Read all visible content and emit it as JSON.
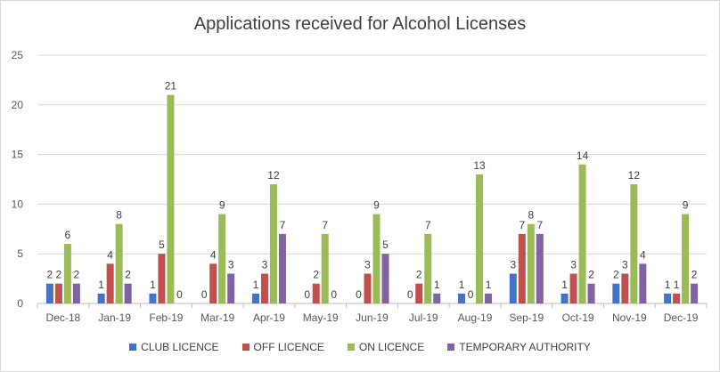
{
  "chart_data": {
    "type": "bar",
    "title": "Applications received for Alcohol Licenses",
    "xlabel": "",
    "ylabel": "",
    "ylim": [
      0,
      25
    ],
    "yticks": [
      0,
      5,
      10,
      15,
      20,
      25
    ],
    "grid": true,
    "legend_position": "bottom",
    "categories": [
      "Dec-18",
      "Jan-19",
      "Feb-19",
      "Mar-19",
      "Apr-19",
      "May-19",
      "Jun-19",
      "Jul-19",
      "Aug-19",
      "Sep-19",
      "Oct-19",
      "Nov-19",
      "Dec-19"
    ],
    "series": [
      {
        "name": "CLUB LICENCE",
        "color": "#4472c4",
        "values": [
          2,
          1,
          1,
          0,
          1,
          0,
          0,
          0,
          1,
          3,
          1,
          2,
          1
        ]
      },
      {
        "name": "OFF LICENCE",
        "color": "#c0504d",
        "values": [
          2,
          4,
          5,
          4,
          3,
          2,
          3,
          2,
          0,
          7,
          3,
          3,
          1
        ]
      },
      {
        "name": "ON LICENCE",
        "color": "#9bbb59",
        "values": [
          6,
          8,
          21,
          9,
          12,
          7,
          9,
          7,
          13,
          8,
          14,
          12,
          9
        ]
      },
      {
        "name": "TEMPORARY AUTHORITY",
        "color": "#8064a2",
        "values": [
          2,
          2,
          0,
          3,
          7,
          0,
          5,
          1,
          1,
          7,
          2,
          4,
          2
        ]
      }
    ]
  }
}
